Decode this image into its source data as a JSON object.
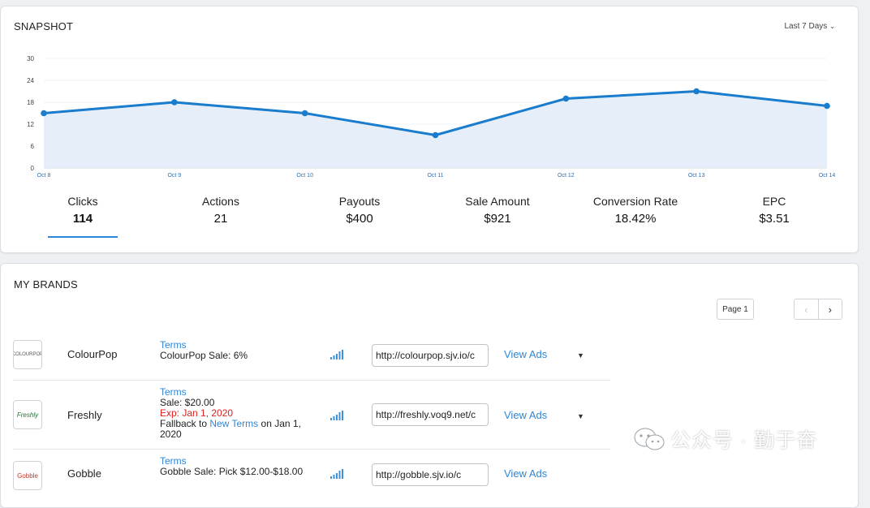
{
  "snapshot": {
    "title": "SNAPSHOT",
    "range_label": "Last 7 Days",
    "metrics": [
      {
        "label": "Clicks",
        "value": "114"
      },
      {
        "label": "Actions",
        "value": "21"
      },
      {
        "label": "Payouts",
        "value": "$400"
      },
      {
        "label": "Sale Amount",
        "value": "$921"
      },
      {
        "label": "Conversion Rate",
        "value": "18.42%"
      },
      {
        "label": "EPC",
        "value": "$3.51"
      }
    ]
  },
  "chart_data": {
    "type": "area",
    "categories": [
      "Oct 8",
      "Oct 9",
      "Oct 10",
      "Oct 11",
      "Oct 12",
      "Oct 13",
      "Oct 14"
    ],
    "values": [
      15,
      18,
      15,
      9,
      19,
      21,
      17
    ],
    "yticks": [
      "0",
      "6",
      "12",
      "18",
      "24",
      "30"
    ],
    "ylim": [
      0,
      30
    ],
    "grid": true,
    "line_color": "#1a7ccc",
    "fill_color": "#e6eff9"
  },
  "brands": {
    "title": "MY BRANDS",
    "page_label": "Page 1",
    "rows": [
      {
        "logo_text": "COLOURPOP",
        "name": "ColourPop",
        "terms_link": "Terms",
        "line1": "ColourPop Sale: 6%",
        "url": "http://colourpop.sjv.io/c",
        "view_ads": "View Ads"
      },
      {
        "logo_text": "Freshly",
        "name": "Freshly",
        "terms_link": "Terms",
        "line1": "Sale: $20.00",
        "exp": "Exp: Jan 1, 2020",
        "fallback_pre": "Fallback to",
        "fallback_link": "New Terms",
        "fallback_post": "on Jan 1, 2020",
        "url": "http://freshly.voq9.net/c",
        "view_ads": "View Ads"
      },
      {
        "logo_text": "Gobble",
        "name": "Gobble",
        "terms_link": "Terms",
        "line1": "Gobble Sale: Pick $12.00-$18.00",
        "url": "http://gobble.sjv.io/c",
        "view_ads": "View Ads"
      }
    ]
  },
  "watermark": {
    "text": "公众号 · 勤于奋"
  }
}
